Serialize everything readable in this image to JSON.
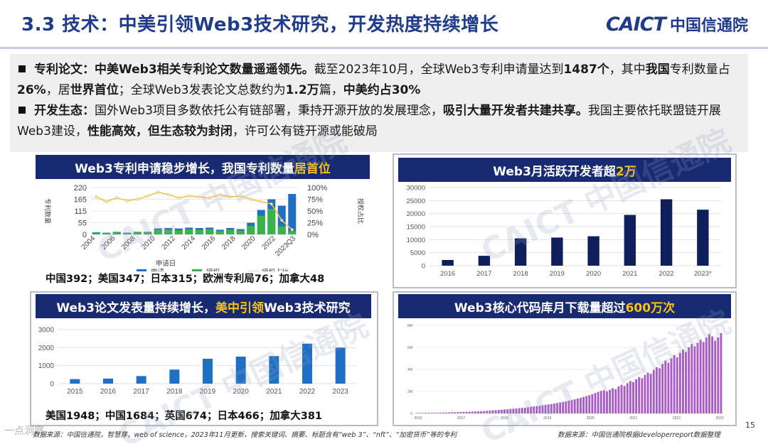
{
  "header": {
    "title": "3.3 技术：中美引领Web3技术研究，开发热度持续增长",
    "logo_en": "CAICT",
    "logo_cn": "中国信通院"
  },
  "bullets": [
    {
      "label": "专利论文：",
      "parts": [
        {
          "t": "中美Web3相关专利论文数量遥遥领先。",
          "b": true
        },
        {
          "t": "截至2023年10月，全球Web3专利申请量达到",
          "b": false
        },
        {
          "t": "1487个",
          "b": true
        },
        {
          "t": "，其中",
          "b": false
        },
        {
          "t": "我国",
          "b": true
        },
        {
          "t": "专利数量占",
          "b": false
        },
        {
          "t": "26%",
          "b": true
        },
        {
          "t": "，居",
          "b": false
        },
        {
          "t": "世界首位",
          "b": true
        },
        {
          "t": "；全球Web3发表论文总数约为",
          "b": false
        },
        {
          "t": "1.2万",
          "b": true
        },
        {
          "t": "篇，",
          "b": false
        },
        {
          "t": "中美约占30%",
          "b": true
        }
      ]
    },
    {
      "label": "开发生态：",
      "parts": [
        {
          "t": "国外Web3项目多数依托公有链部署，秉持开源开放的发展理念，",
          "b": false
        },
        {
          "t": "吸引大量开发者共建共享。",
          "b": true
        },
        {
          "t": "我国主要依托联盟链开展Web3建设，",
          "b": false
        },
        {
          "t": "性能高效，但生态较为封闭",
          "b": true
        },
        {
          "t": "，许可公有链开源或能破局",
          "b": false
        }
      ]
    }
  ],
  "panels": {
    "patent": {
      "banner_a": "Web3专利申请稳步增长，我国专利数量",
      "banner_hl": "居首位",
      "note": "中国392；美国347；日本315；欧洲专利局76；加拿大48"
    },
    "devs": {
      "banner_a": "Web3月活跃开发者超",
      "banner_hl": "2万"
    },
    "papers": {
      "banner_a": "Web3论文发表量持续增长，",
      "banner_hl": "美中引领",
      "banner_b": "Web3技术研究",
      "note": "美国1948；中国1684；英国674；日本466；加拿大381"
    },
    "downloads": {
      "banner_a": "Web3核心代码库月下载量超过",
      "banner_hl": "600万次"
    }
  },
  "sources": {
    "left": "数据来源：中国信通院，智慧芽，web of science，2023年11月更新，搜索关键词、摘要、标题含有“web 3”、“nft”、“加密货币”等的专利",
    "right": "数据来源：中国信通院根据developerreport数据整理"
  },
  "page_number": "15",
  "watermark_cn": "中国信通院",
  "watermark_bottom": "一点洞察",
  "chart_data": [
    {
      "id": "patent",
      "type": "bar",
      "categories": [
        "2004",
        "2005",
        "2006",
        "2007",
        "2008",
        "2009",
        "2010",
        "2011",
        "2012",
        "2013",
        "2014",
        "2015",
        "2016",
        "2017",
        "2018",
        "2019",
        "2020",
        "2021",
        "2022",
        "2023"
      ],
      "x_tick_labels": [
        "2004",
        "2006",
        "2008",
        "2010",
        "2012",
        "2014",
        "2016",
        "2018",
        "2020",
        "2022",
        "2023Q3"
      ],
      "series": [
        {
          "name": "申请",
          "values": [
            10,
            8,
            12,
            8,
            12,
            12,
            28,
            30,
            28,
            32,
            30,
            32,
            22,
            30,
            25,
            55,
            115,
            165,
            135,
            190
          ],
          "color": "#1f6fc5"
        },
        {
          "name": "授权",
          "values": [
            8,
            6,
            10,
            6,
            10,
            10,
            22,
            22,
            20,
            25,
            22,
            25,
            16,
            22,
            18,
            40,
            88,
            120,
            38,
            15
          ],
          "color": "#3ab34a"
        },
        {
          "name": "授权占比",
          "values": [
            80,
            70,
            78,
            72,
            75,
            82,
            90,
            85,
            78,
            82,
            80,
            78,
            85,
            80,
            82,
            75,
            70,
            65,
            30,
            10
          ],
          "color": "#f2c14e",
          "axis": "right"
        }
      ],
      "xlabel": "申请日",
      "ylabel": "专利数量",
      "y2label": "授权占比",
      "y_ticks": [
        "220",
        "165",
        "115",
        "55",
        "0"
      ],
      "y2_ticks": [
        "100%",
        "75%",
        "50%",
        "25%",
        "0%"
      ],
      "ylim": [
        0,
        220
      ],
      "y2lim": [
        0,
        100
      ],
      "legend": "bottom"
    },
    {
      "id": "devs",
      "type": "bar",
      "categories": [
        "2016",
        "2017",
        "2018",
        "2019",
        "2020",
        "2021",
        "2022",
        "2023*"
      ],
      "values": [
        2200,
        3800,
        10500,
        10800,
        11300,
        19500,
        25500,
        21500
      ],
      "color": "#0f1f5c",
      "ylim": [
        0,
        30000
      ],
      "y_ticks": [
        "30000",
        "25000",
        "20000",
        "15000",
        "10000",
        "5000",
        "0"
      ]
    },
    {
      "id": "papers",
      "type": "bar",
      "categories": [
        "2015",
        "2016",
        "2017",
        "2018",
        "2019",
        "2020",
        "2021",
        "2022",
        "2023"
      ],
      "values": [
        250,
        280,
        420,
        780,
        1380,
        1500,
        1530,
        2220,
        2000
      ],
      "color": "#1f6fc5",
      "ylim": [
        0,
        3000
      ],
      "y_ticks": [
        "3000",
        "2000",
        "1000",
        "0"
      ]
    },
    {
      "id": "downloads",
      "type": "bar",
      "x_tick_labels": [
        "2016",
        "2017",
        "2018",
        "2019",
        "2020",
        "2021",
        "2022",
        "2023"
      ],
      "y_ticks": [
        "8M",
        "6M",
        "4M",
        "2M",
        "0"
      ],
      "ylim": [
        0,
        8
      ],
      "color": "#a85bc4",
      "values": [
        0.05,
        0.05,
        0.05,
        0.06,
        0.06,
        0.06,
        0.07,
        0.07,
        0.08,
        0.08,
        0.09,
        0.09,
        0.1,
        0.11,
        0.12,
        0.13,
        0.14,
        0.15,
        0.16,
        0.17,
        0.18,
        0.19,
        0.2,
        0.22,
        0.24,
        0.26,
        0.28,
        0.3,
        0.32,
        0.34,
        0.36,
        0.38,
        0.4,
        0.42,
        0.45,
        0.48,
        0.5,
        0.53,
        0.56,
        0.6,
        0.63,
        0.66,
        0.7,
        0.74,
        0.78,
        0.82,
        0.86,
        0.9,
        0.95,
        1.0,
        1.05,
        1.1,
        1.16,
        1.22,
        1.28,
        1.35,
        1.42,
        1.5,
        1.58,
        1.66,
        1.75,
        1.85,
        1.95,
        2.05,
        2.1,
        2.0,
        2.15,
        2.3,
        2.2,
        2.45,
        2.6,
        2.5,
        2.75,
        2.95,
        2.85,
        3.1,
        3.3,
        3.2,
        3.5,
        3.7,
        3.6,
        3.95,
        4.2,
        4.1,
        4.5,
        4.8,
        4.6,
        5.0,
        5.3,
        5.1,
        5.5,
        5.8,
        5.6,
        6.0,
        6.3,
        6.1,
        6.4,
        6.7,
        6.5,
        6.9,
        7.2,
        7.0,
        6.6,
        6.9,
        7.3
      ]
    }
  ]
}
